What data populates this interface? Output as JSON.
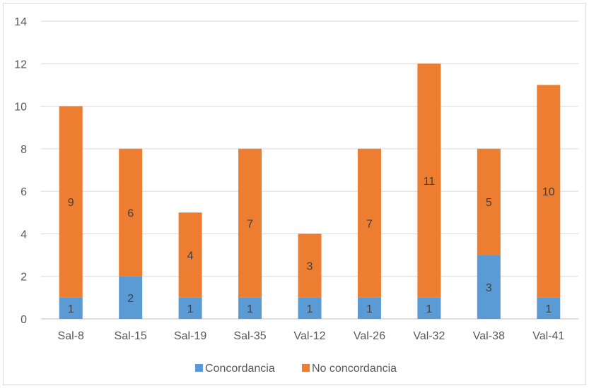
{
  "chart_data": {
    "type": "bar",
    "stacked": true,
    "categories": [
      "Sal-8",
      "Sal-15",
      "Sal-19",
      "Sal-35",
      "Val-12",
      "Val-26",
      "Val-32",
      "Val-38",
      "Val-41"
    ],
    "series": [
      {
        "name": "Concordancia",
        "values": [
          1,
          2,
          1,
          1,
          1,
          1,
          1,
          3,
          1
        ],
        "color": "#5b9bd5"
      },
      {
        "name": "No concordancia",
        "values": [
          9,
          6,
          4,
          7,
          3,
          7,
          11,
          5,
          10
        ],
        "color": "#ed7d31"
      }
    ],
    "ylim": [
      0,
      14
    ],
    "yticks": [
      0,
      2,
      4,
      6,
      8,
      10,
      12,
      14
    ],
    "title": "",
    "xlabel": "",
    "ylabel": "",
    "grid": true,
    "legend_position": "bottom",
    "gridline_color": "#d9d9d9",
    "label_color": "#595959"
  }
}
